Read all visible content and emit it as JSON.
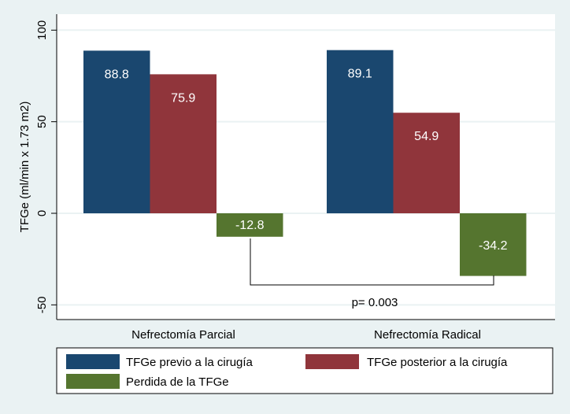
{
  "chart_data": {
    "type": "bar",
    "categories": [
      "Nefrectomía Parcial",
      "Nefrectomía Radical"
    ],
    "series": [
      {
        "name": "TFGe previo a la cirugía",
        "values": [
          88.8,
          89.1
        ],
        "labels": [
          "88.8",
          "89.1"
        ],
        "color": "#1A476F"
      },
      {
        "name": "TFGe posterior a la cirugía",
        "values": [
          75.9,
          54.9
        ],
        "labels": [
          "75.9",
          "54.9"
        ],
        "color": "#90353B"
      },
      {
        "name": "Perdida de la TFGe",
        "values": [
          -12.8,
          -34.2
        ],
        "labels": [
          "-12.8",
          "-34.2"
        ],
        "color": "#55752F"
      }
    ],
    "ylabel": "TFGe (ml/min x 1.73 m2)",
    "yticks": [
      100,
      50,
      0,
      -50
    ],
    "ytick_labels": [
      "100",
      "50",
      "0",
      "-50"
    ],
    "ylim": [
      -57,
      110
    ],
    "grid": true,
    "legend_placement": "bottom",
    "annotation": "p= 0.003",
    "background": "#EAF2F3"
  }
}
